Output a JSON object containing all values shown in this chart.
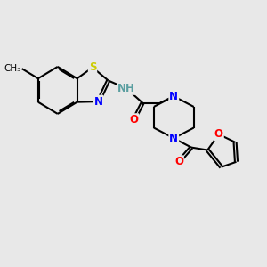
{
  "background_color": "#e8e8e8",
  "bond_color": "#000000",
  "atom_colors": {
    "S": "#cccc00",
    "N": "#0000ff",
    "O": "#ff0000",
    "H": "#5a9ea0",
    "C": "#000000"
  },
  "figsize": [
    3.0,
    3.0
  ],
  "dpi": 100
}
